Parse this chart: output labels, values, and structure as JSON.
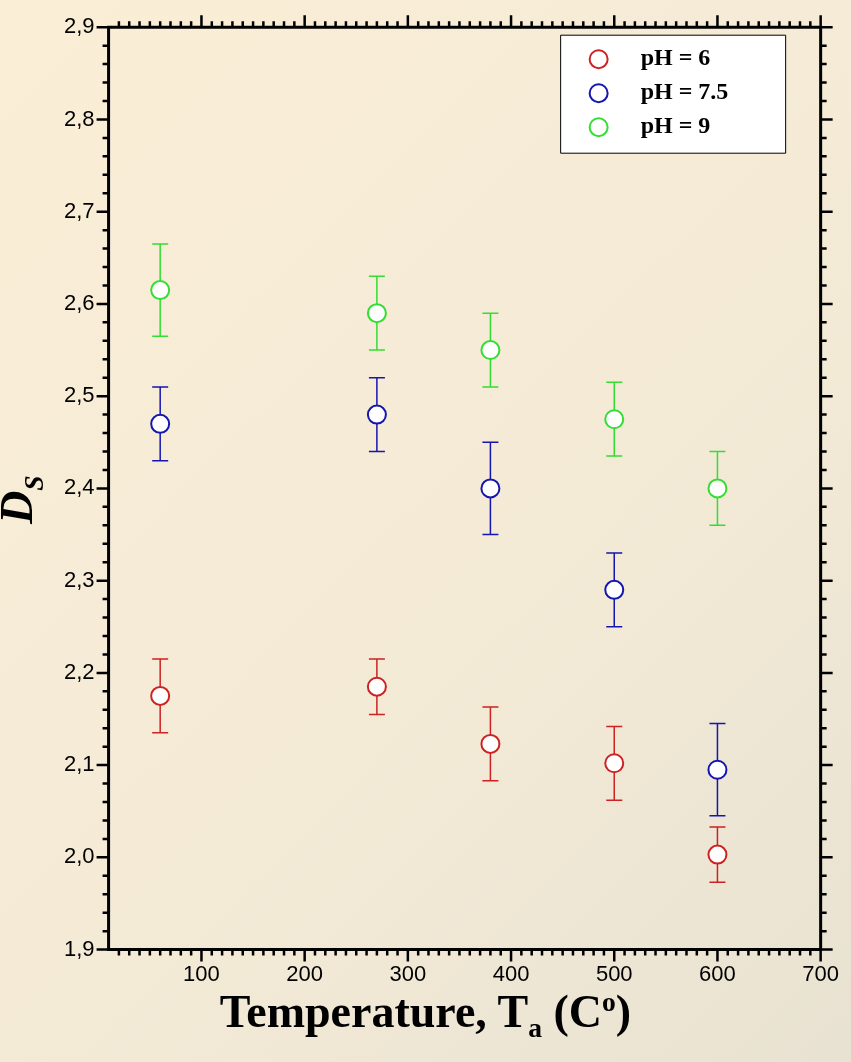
{
  "chart_data": {
    "type": "scatter",
    "xlabel": "Temperature, T$_{a}$ (C$^{o}$)",
    "ylabel": "D$_{S}$",
    "x": [
      60,
      270,
      380,
      500,
      600
    ],
    "series": [
      {
        "name": "pH = 6",
        "color": "#cc2222",
        "values": [
          2.175,
          2.185,
          2.123,
          2.102,
          2.003
        ],
        "errors": [
          0.04,
          0.03,
          0.04,
          0.04,
          0.03
        ]
      },
      {
        "name": "pH = 7.5",
        "color": "#1515b0",
        "values": [
          2.47,
          2.48,
          2.4,
          2.29,
          2.095
        ],
        "errors": [
          0.04,
          0.04,
          0.05,
          0.04,
          0.05
        ]
      },
      {
        "name": "pH = 9",
        "color": "#33dd33",
        "values": [
          2.615,
          2.59,
          2.55,
          2.475,
          2.4
        ],
        "errors": [
          0.05,
          0.04,
          0.04,
          0.04,
          0.04
        ]
      }
    ],
    "xlim": [
      10,
      700
    ],
    "xticks": [
      {
        "value": 20,
        "label": null
      },
      {
        "value": 30,
        "label": null
      },
      {
        "value": 40,
        "label": null
      },
      {
        "value": 50,
        "label": null
      },
      {
        "value": 60,
        "label": null
      },
      {
        "value": 70,
        "label": null
      },
      {
        "value": 80,
        "label": null
      },
      {
        "value": 90,
        "label": null
      },
      100,
      {
        "value": 110,
        "label": null
      },
      {
        "value": 120,
        "label": null
      },
      {
        "value": 130,
        "label": null
      },
      {
        "value": 140,
        "label": null
      },
      {
        "value": 150,
        "label": null
      },
      {
        "value": 160,
        "label": null
      },
      {
        "value": 170,
        "label": null
      },
      {
        "value": 180,
        "label": null
      },
      {
        "value": 190,
        "label": null
      },
      200,
      {
        "value": 210,
        "label": null
      },
      {
        "value": 220,
        "label": null
      },
      {
        "value": 230,
        "label": null
      },
      {
        "value": 240,
        "label": null
      },
      {
        "value": 250,
        "label": null
      },
      {
        "value": 260,
        "label": null
      },
      {
        "value": 270,
        "label": null
      },
      {
        "value": 280,
        "label": null
      },
      {
        "value": 290,
        "label": null
      },
      300,
      {
        "value": 310,
        "label": null
      },
      {
        "value": 320,
        "label": null
      },
      {
        "value": 330,
        "label": null
      },
      {
        "value": 340,
        "label": null
      },
      {
        "value": 350,
        "label": null
      },
      {
        "value": 360,
        "label": null
      },
      {
        "value": 370,
        "label": null
      },
      {
        "value": 380,
        "label": null
      },
      {
        "value": 390,
        "label": null
      },
      400,
      {
        "value": 410,
        "label": null
      },
      {
        "value": 420,
        "label": null
      },
      {
        "value": 430,
        "label": null
      },
      {
        "value": 440,
        "label": null
      },
      {
        "value": 450,
        "label": null
      },
      {
        "value": 460,
        "label": null
      },
      {
        "value": 470,
        "label": null
      },
      {
        "value": 480,
        "label": null
      },
      {
        "value": 490,
        "label": null
      },
      500,
      {
        "value": 510,
        "label": null
      },
      {
        "value": 520,
        "label": null
      },
      {
        "value": 530,
        "label": null
      },
      {
        "value": 540,
        "label": null
      },
      {
        "value": 550,
        "label": null
      },
      {
        "value": 560,
        "label": null
      },
      {
        "value": 570,
        "label": null
      },
      {
        "value": 580,
        "label": null
      },
      {
        "value": 590,
        "label": null
      },
      600,
      {
        "value": 610,
        "label": null
      },
      {
        "value": 620,
        "label": null
      },
      {
        "value": 630,
        "label": null
      },
      {
        "value": 640,
        "label": null
      },
      {
        "value": 650,
        "label": null
      },
      {
        "value": 660,
        "label": null
      },
      {
        "value": 670,
        "label": null
      },
      {
        "value": 680,
        "label": null
      },
      {
        "value": 690,
        "label": null
      },
      700
    ],
    "ylim": [
      1.9,
      2.9
    ],
    "yticks": [
      {
        "value": 1.9,
        "label": "1,9"
      },
      {
        "value": 1.92,
        "label": null
      },
      {
        "value": 1.94,
        "label": null
      },
      {
        "value": 1.96,
        "label": null
      },
      {
        "value": 1.98,
        "label": null
      },
      {
        "value": 2.0,
        "label": "2,0"
      },
      {
        "value": 2.02,
        "label": null
      },
      {
        "value": 2.04,
        "label": null
      },
      {
        "value": 2.06,
        "label": null
      },
      {
        "value": 2.08,
        "label": null
      },
      {
        "value": 2.1,
        "label": "2,1"
      },
      {
        "value": 2.12,
        "label": null
      },
      {
        "value": 2.14,
        "label": null
      },
      {
        "value": 2.16,
        "label": null
      },
      {
        "value": 2.18,
        "label": null
      },
      {
        "value": 2.2,
        "label": "2,2"
      },
      {
        "value": 2.22,
        "label": null
      },
      {
        "value": 2.24,
        "label": null
      },
      {
        "value": 2.26,
        "label": null
      },
      {
        "value": 2.28,
        "label": null
      },
      {
        "value": 2.3,
        "label": "2,3"
      },
      {
        "value": 2.32,
        "label": null
      },
      {
        "value": 2.34,
        "label": null
      },
      {
        "value": 2.36,
        "label": null
      },
      {
        "value": 2.38,
        "label": null
      },
      {
        "value": 2.4,
        "label": "2,4"
      },
      {
        "value": 2.42,
        "label": null
      },
      {
        "value": 2.44,
        "label": null
      },
      {
        "value": 2.46,
        "label": null
      },
      {
        "value": 2.48,
        "label": null
      },
      {
        "value": 2.5,
        "label": "2,5"
      },
      {
        "value": 2.52,
        "label": null
      },
      {
        "value": 2.54,
        "label": null
      },
      {
        "value": 2.56,
        "label": null
      },
      {
        "value": 2.58,
        "label": null
      },
      {
        "value": 2.6,
        "label": "2,6"
      },
      {
        "value": 2.62,
        "label": null
      },
      {
        "value": 2.64,
        "label": null
      },
      {
        "value": 2.66,
        "label": null
      },
      {
        "value": 2.68,
        "label": null
      },
      {
        "value": 2.7,
        "label": "2,7"
      },
      {
        "value": 2.72,
        "label": null
      },
      {
        "value": 2.74,
        "label": null
      },
      {
        "value": 2.76,
        "label": null
      },
      {
        "value": 2.78,
        "label": null
      },
      {
        "value": 2.8,
        "label": "2,8"
      },
      {
        "value": 2.82,
        "label": null
      },
      {
        "value": 2.84,
        "label": null
      },
      {
        "value": 2.86,
        "label": null
      },
      {
        "value": 2.88,
        "label": null
      },
      {
        "value": 2.9,
        "label": "2,9"
      }
    ],
    "marker": "circle",
    "legend": "top right",
    "grid": false
  }
}
